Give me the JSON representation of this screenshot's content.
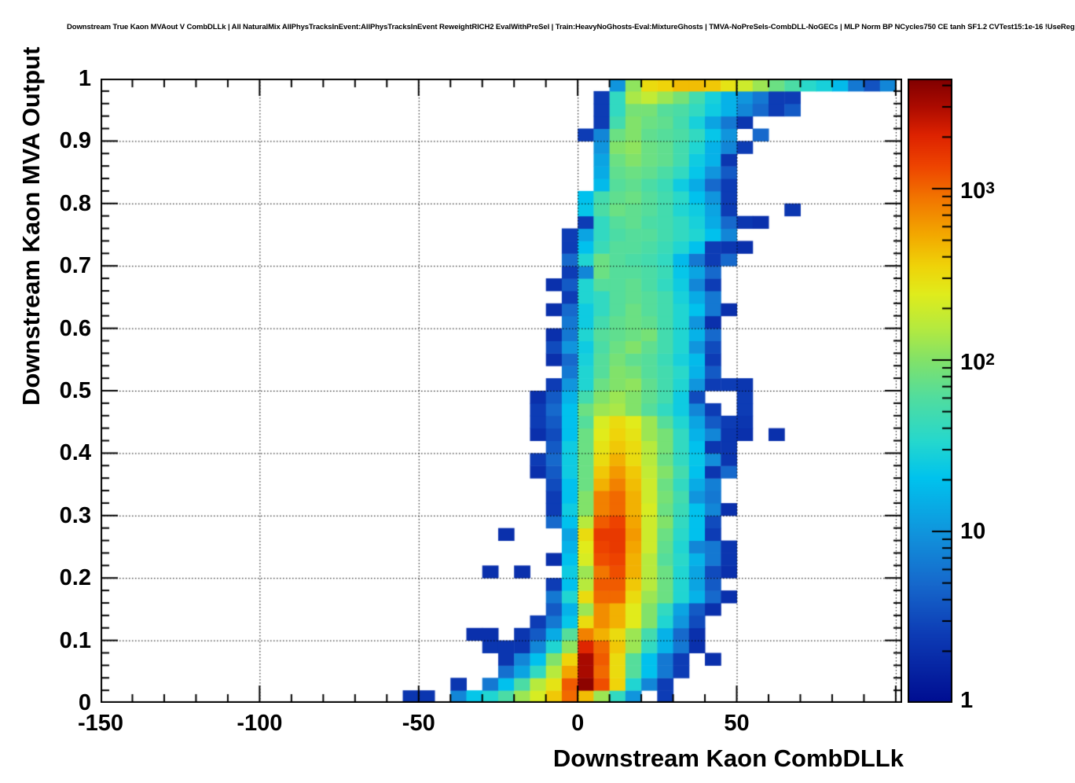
{
  "chart_data": {
    "type": "heatmap",
    "title": "Downstream True Kaon MVAout V CombDLLk | All NaturalMix AllPhysTracksInEvent:AllPhysTracksInEvent ReweightRICH2 EvalWithPreSel | Train:HeavyNoGhosts-Eval:MixtureGhosts | TMVA-NoPreSels-CombDLL-NoGECs | MLP Norm BP NCycles750 CE tanh SF1.2 CVTest15:1e-16 !UseReg",
    "xlabel": "Downstream Kaon CombDLLk",
    "ylabel": "Downstream Kaon MVA Output",
    "xlim": [
      -150,
      102
    ],
    "ylim": [
      0,
      1
    ],
    "grid": "dotted-on-top",
    "x_axis": {
      "major_ticks": [
        -150,
        -100,
        -50,
        0,
        50,
        100
      ],
      "labels": [
        "-150",
        "-100",
        "-50",
        "0",
        "50",
        ""
      ],
      "minor_step": 10,
      "gridlines": [
        -100,
        -50,
        0,
        50,
        100
      ]
    },
    "y_axis": {
      "major_ticks": [
        0,
        0.1,
        0.2,
        0.3,
        0.4,
        0.5,
        0.6,
        0.7,
        0.8,
        0.9,
        1
      ],
      "labels": [
        "0",
        "0.1",
        "0.2",
        "0.3",
        "0.4",
        "0.5",
        "0.6",
        "0.7",
        "0.8",
        "0.9",
        "1"
      ],
      "minor_step": 0.02,
      "gridlines": [
        0.1,
        0.2,
        0.3,
        0.4,
        0.5,
        0.6,
        0.7,
        0.8,
        0.9
      ]
    },
    "colorbar": {
      "scale": "log",
      "zmin": 1,
      "zmax": 4400,
      "log_max": 3.642,
      "tick_values": [
        1,
        10,
        100,
        1000
      ],
      "tick_labels": [
        {
          "base": "1",
          "sup": ""
        },
        {
          "base": "10",
          "sup": ""
        },
        {
          "base": "10",
          "sup": "2"
        },
        {
          "base": "10",
          "sup": "3"
        }
      ]
    },
    "palette_stops": [
      {
        "t": 0.0,
        "c": "#000d91"
      },
      {
        "t": 0.11,
        "c": "#0d3cb5"
      },
      {
        "t": 0.19,
        "c": "#1668cc"
      },
      {
        "t": 0.27,
        "c": "#1193dc"
      },
      {
        "t": 0.36,
        "c": "#00c3ee"
      },
      {
        "t": 0.42,
        "c": "#26d8cd"
      },
      {
        "t": 0.49,
        "c": "#52dd9e"
      },
      {
        "t": 0.55,
        "c": "#83e268"
      },
      {
        "t": 0.6,
        "c": "#b5ea3f"
      },
      {
        "t": 0.655,
        "c": "#e0ec1c"
      },
      {
        "t": 0.7,
        "c": "#efd309"
      },
      {
        "t": 0.75,
        "c": "#f3a800"
      },
      {
        "t": 0.81,
        "c": "#f27400"
      },
      {
        "t": 0.86,
        "c": "#ee4400"
      },
      {
        "t": 0.91,
        "c": "#dd2200"
      },
      {
        "t": 0.955,
        "c": "#ac0b00"
      },
      {
        "t": 1.0,
        "c": "#800000"
      }
    ],
    "bin_width_x": 5,
    "bin_height_y": 0.02,
    "z_encoding": "log10(count)",
    "rows": [
      {
        "y": 0.0,
        "x0": -55,
        "v": [
          0.35,
          0.35,
          null,
          0.9,
          1.35,
          1.5,
          1.75,
          2.1,
          2.35,
          2.6,
          3.0,
          2.65,
          2.1,
          1.6,
          1.0,
          null,
          0.4
        ]
      },
      {
        "y": 0.02,
        "x0": -40,
        "v": [
          0.35,
          null,
          0.8,
          1.3,
          1.75,
          2.2,
          2.45,
          3.05,
          3.6,
          3.1,
          2.55,
          1.5,
          0.9,
          0.4
        ]
      },
      {
        "y": 0.04,
        "x0": -25,
        "v": [
          0.75,
          1.1,
          1.6,
          2.2,
          2.75,
          3.5,
          3.0,
          2.5,
          1.8,
          1.3,
          0.8,
          0.4
        ]
      },
      {
        "y": 0.06,
        "x0": -25,
        "v": [
          0.35,
          0.9,
          1.3,
          2.0,
          2.55,
          3.5,
          3.05,
          2.5,
          1.8,
          1.3,
          0.8,
          0.4,
          null,
          0.3
        ]
      },
      {
        "y": 0.08,
        "x0": -30,
        "v": [
          0.35,
          0.35,
          0.35,
          0.9,
          1.5,
          2.05,
          3.3,
          3.0,
          2.6,
          2.1,
          1.6,
          1.2,
          0.8,
          0.3
        ]
      },
      {
        "y": 0.1,
        "x0": -35,
        "v": [
          0.3,
          0.3,
          null,
          0.35,
          0.6,
          1.15,
          1.8,
          2.9,
          2.7,
          2.5,
          2.1,
          1.7,
          1.2,
          0.7,
          0.3
        ]
      },
      {
        "y": 0.12,
        "x0": -15,
        "v": [
          0.4,
          0.8,
          1.35,
          2.5,
          2.85,
          2.7,
          2.4,
          2.0,
          1.5,
          1.0,
          0.5
        ]
      },
      {
        "y": 0.14,
        "x0": -10,
        "v": [
          0.6,
          1.2,
          2.1,
          2.85,
          2.7,
          2.4,
          2.0,
          1.6,
          1.1,
          0.6,
          0.3
        ]
      },
      {
        "y": 0.16,
        "x0": -10,
        "v": [
          0.8,
          1.5,
          2.5,
          3.0,
          3.0,
          2.5,
          2.1,
          1.9,
          1.5,
          1.2,
          0.7,
          0.3
        ]
      },
      {
        "y": 0.18,
        "x0": -10,
        "v": [
          0.4,
          1.3,
          2.2,
          3.05,
          3.05,
          2.6,
          2.2,
          1.9,
          1.5,
          1.1,
          0.6
        ]
      },
      {
        "y": 0.2,
        "x0": -30,
        "v": [
          0.3,
          null,
          0.3,
          null,
          null,
          1.4,
          2.1,
          2.95,
          3.1,
          2.7,
          2.2,
          1.9,
          1.5,
          1.1,
          0.5,
          0.3
        ]
      },
      {
        "y": 0.22,
        "x0": -10,
        "v": [
          0.3,
          1.3,
          2.35,
          3.1,
          3.15,
          2.7,
          2.2,
          1.8,
          1.55,
          1.2,
          0.8,
          0.35
        ]
      },
      {
        "y": 0.24,
        "x0": -5,
        "v": [
          1.2,
          2.4,
          3.15,
          3.2,
          2.75,
          2.3,
          1.85,
          1.5,
          0.9,
          0.8,
          0.35
        ]
      },
      {
        "y": 0.26,
        "x0": -25,
        "v": [
          0.3,
          null,
          null,
          null,
          1.1,
          2.5,
          3.2,
          3.2,
          2.8,
          2.3,
          1.9,
          1.55,
          1.3,
          0.4
        ]
      },
      {
        "y": 0.28,
        "x0": -10,
        "v": [
          0.7,
          1.3,
          2.2,
          3.05,
          3.15,
          2.75,
          2.3,
          2.0,
          1.6,
          1.3,
          0.5
        ]
      },
      {
        "y": 0.3,
        "x0": -10,
        "v": [
          0.4,
          1.4,
          2.0,
          2.9,
          3.0,
          2.7,
          2.35,
          1.9,
          1.65,
          1.3,
          0.9,
          0.3
        ]
      },
      {
        "y": 0.32,
        "x0": -10,
        "v": [
          0.4,
          1.3,
          2.0,
          2.9,
          3.0,
          2.7,
          2.3,
          1.95,
          1.7,
          1.0,
          0.8
        ]
      },
      {
        "y": 0.34,
        "x0": -10,
        "v": [
          0.5,
          1.3,
          1.9,
          2.7,
          2.9,
          2.65,
          2.3,
          1.9,
          1.6,
          1.15,
          0.85
        ]
      },
      {
        "y": 0.36,
        "x0": -15,
        "v": [
          0.3,
          0.6,
          1.4,
          1.9,
          2.6,
          2.8,
          2.6,
          2.25,
          2.0,
          1.7,
          1.3,
          0.35,
          0.7
        ]
      },
      {
        "y": 0.38,
        "x0": -15,
        "v": [
          0.4,
          0.7,
          1.4,
          1.9,
          2.5,
          2.7,
          2.5,
          2.2,
          1.9,
          1.6,
          1.35,
          0.95,
          0.35
        ]
      },
      {
        "y": 0.4,
        "x0": -10,
        "v": [
          0.6,
          1.4,
          1.9,
          2.45,
          2.6,
          2.5,
          2.2,
          1.95,
          1.6,
          1.3,
          0.35,
          0.35
        ]
      },
      {
        "y": 0.42,
        "x0": -15,
        "v": [
          0.3,
          0.5,
          1.3,
          1.9,
          2.4,
          2.55,
          2.45,
          2.1,
          1.95,
          1.6,
          1.2,
          0.9,
          0.35,
          0.3,
          null,
          0.3
        ]
      },
      {
        "y": 0.44,
        "x0": -15,
        "v": [
          0.4,
          0.6,
          1.3,
          1.8,
          2.35,
          2.5,
          2.4,
          2.1,
          1.8,
          1.5,
          1.1,
          0.6,
          0.4,
          0.35
        ]
      },
      {
        "y": 0.46,
        "x0": -15,
        "v": [
          0.4,
          0.7,
          1.3,
          1.9,
          2.1,
          2.15,
          2.0,
          1.8,
          1.6,
          1.4,
          0.9,
          0.4,
          null,
          0.4
        ]
      },
      {
        "y": 0.48,
        "x0": -15,
        "v": [
          0.3,
          0.6,
          1.2,
          1.7,
          2.0,
          2.1,
          2.0,
          1.85,
          1.7,
          1.4,
          0.5,
          null,
          null,
          0.4
        ]
      },
      {
        "y": 0.5,
        "x0": -10,
        "v": [
          0.4,
          1.0,
          1.5,
          1.9,
          2.0,
          2.05,
          1.85,
          1.7,
          1.5,
          1.0,
          0.4,
          0.4,
          0.35
        ]
      },
      {
        "y": 0.52,
        "x0": -5,
        "v": [
          0.8,
          1.5,
          1.8,
          2.0,
          1.95,
          1.8,
          1.7,
          1.55,
          1.2,
          0.6
        ]
      },
      {
        "y": 0.54,
        "x0": -10,
        "v": [
          0.3,
          0.7,
          1.45,
          1.8,
          1.95,
          1.85,
          1.8,
          1.65,
          1.45,
          1.25,
          0.4
        ]
      },
      {
        "y": 0.56,
        "x0": -10,
        "v": [
          0.5,
          1.0,
          1.4,
          1.75,
          1.9,
          2.0,
          1.85,
          1.7,
          1.5,
          1.0,
          0.5
        ]
      },
      {
        "y": 0.58,
        "x0": -10,
        "v": [
          0.3,
          0.8,
          1.5,
          1.8,
          1.85,
          1.9,
          1.95,
          1.7,
          1.5,
          1.2,
          0.7
        ]
      },
      {
        "y": 0.6,
        "x0": -5,
        "v": [
          0.8,
          1.4,
          1.7,
          1.85,
          1.9,
          1.85,
          1.7,
          1.5,
          1.0,
          0.3
        ]
      },
      {
        "y": 0.62,
        "x0": -10,
        "v": [
          0.3,
          0.7,
          1.4,
          1.6,
          1.8,
          1.9,
          1.8,
          1.7,
          1.5,
          1.3,
          0.8,
          0.3
        ]
      },
      {
        "y": 0.64,
        "x0": -5,
        "v": [
          0.4,
          1.5,
          1.6,
          1.8,
          1.85,
          1.8,
          1.7,
          1.45,
          1.15,
          0.8
        ]
      },
      {
        "y": 0.66,
        "x0": -10,
        "v": [
          0.3,
          0.6,
          1.5,
          1.8,
          1.8,
          1.85,
          1.75,
          1.6,
          1.4,
          0.9,
          0.4
        ]
      },
      {
        "y": 0.68,
        "x0": -5,
        "v": [
          0.4,
          0.9,
          1.9,
          1.8,
          1.8,
          1.75,
          1.65,
          1.35,
          1.1,
          0.7
        ]
      },
      {
        "y": 0.7,
        "x0": -5,
        "v": [
          0.7,
          1.5,
          1.9,
          1.8,
          1.75,
          1.7,
          1.6,
          1.25,
          0.8,
          0.4,
          0.7
        ]
      },
      {
        "y": 0.72,
        "x0": -5,
        "v": [
          0.4,
          1.3,
          1.65,
          1.8,
          1.8,
          1.75,
          1.65,
          1.5,
          1.3,
          0.4,
          0.35,
          0.3
        ]
      },
      {
        "y": 0.74,
        "x0": -5,
        "v": [
          0.4,
          1.1,
          1.6,
          1.75,
          1.8,
          1.8,
          1.7,
          1.6,
          1.5,
          1.3,
          0.9
        ]
      },
      {
        "y": 0.76,
        "x0": 0,
        "v": [
          0.4,
          1.6,
          1.8,
          1.85,
          1.75,
          1.7,
          1.6,
          1.45,
          1.15,
          0.7,
          0.35,
          0.3
        ]
      },
      {
        "y": 0.78,
        "x0": 0,
        "v": [
          1.35,
          1.75,
          1.9,
          1.85,
          1.8,
          1.7,
          1.5,
          1.4,
          1.1,
          0.4,
          null,
          null,
          null,
          0.35
        ]
      },
      {
        "y": 0.8,
        "x0": 0,
        "v": [
          1.3,
          1.7,
          1.85,
          1.9,
          1.8,
          1.7,
          1.55,
          1.3,
          1.0,
          0.4
        ]
      },
      {
        "y": 0.82,
        "x0": 5,
        "v": [
          1.25,
          1.8,
          1.85,
          1.75,
          1.65,
          1.4,
          1.15,
          0.7,
          0.4
        ]
      },
      {
        "y": 0.84,
        "x0": 5,
        "v": [
          1.15,
          1.85,
          1.9,
          1.85,
          1.75,
          1.6,
          1.35,
          1.0,
          0.6
        ]
      },
      {
        "y": 0.86,
        "x0": 5,
        "v": [
          1.1,
          1.9,
          2.0,
          1.9,
          1.85,
          1.7,
          1.4,
          1.2,
          0.35
        ]
      },
      {
        "y": 0.88,
        "x0": 5,
        "v": [
          1.0,
          2.0,
          2.05,
          1.9,
          1.85,
          1.7,
          1.5,
          1.2,
          0.9,
          0.4
        ]
      },
      {
        "y": 0.9,
        "x0": 0,
        "v": [
          0.4,
          0.9,
          1.9,
          2.0,
          1.85,
          1.8,
          1.75,
          1.6,
          1.35,
          1.0,
          null,
          0.7
        ]
      },
      {
        "y": 0.92,
        "x0": 5,
        "v": [
          0.4,
          1.7,
          2.0,
          1.9,
          1.85,
          1.7,
          1.45,
          1.1,
          0.8,
          0.35
        ]
      },
      {
        "y": 0.94,
        "x0": 5,
        "v": [
          0.4,
          1.6,
          1.95,
          1.95,
          1.8,
          1.75,
          1.6,
          1.4,
          1.2,
          0.9,
          0.7,
          0.4,
          0.6
        ]
      },
      {
        "y": 0.96,
        "x0": 5,
        "v": [
          0.4,
          1.6,
          2.15,
          2.25,
          2.1,
          1.95,
          1.7,
          1.45,
          1.2,
          1.0,
          0.8,
          0.4,
          0.4
        ]
      },
      {
        "y": 0.98,
        "x0": 10,
        "v": [
          1.0,
          2.05,
          2.5,
          2.55,
          2.65,
          2.65,
          2.6,
          2.45,
          2.3,
          2.1,
          1.9,
          1.75,
          1.55,
          1.45,
          1.25,
          0.8,
          0.55,
          0.9
        ]
      }
    ]
  },
  "colors": {
    "background": "#ffffff",
    "frame": "#000000",
    "grid": "#000000",
    "text": "#000000"
  }
}
